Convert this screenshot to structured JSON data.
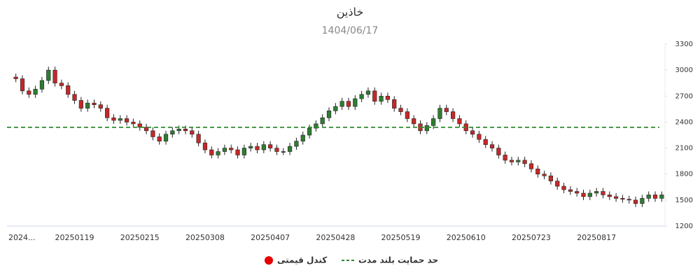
{
  "chart_data": {
    "type": "candlestick",
    "title": "خاذین",
    "subtitle": "1404/06/17",
    "categories": [
      null,
      "2024...",
      null,
      null,
      null,
      null,
      null,
      null,
      null,
      "20250119",
      null,
      null,
      null,
      null,
      null,
      null,
      null,
      null,
      null,
      "20250215",
      null,
      null,
      null,
      null,
      null,
      null,
      null,
      null,
      null,
      "20250308",
      null,
      null,
      null,
      null,
      null,
      null,
      null,
      null,
      null,
      "20250407",
      null,
      null,
      null,
      null,
      null,
      null,
      null,
      null,
      null,
      "20250428",
      null,
      null,
      null,
      null,
      null,
      null,
      null,
      null,
      null,
      "20250519",
      null,
      null,
      null,
      null,
      null,
      null,
      null,
      null,
      null,
      "20250610",
      null,
      null,
      null,
      null,
      null,
      null,
      null,
      null,
      null,
      "20250723",
      null,
      null,
      null,
      null,
      null,
      null,
      null,
      null,
      null,
      "20250817",
      null,
      null,
      null,
      null,
      null,
      null,
      null,
      null,
      null,
      null
    ],
    "series": [
      {
        "name": "کندل قیمتی",
        "color": "#e60000",
        "up_color": "#2e7d32",
        "down_color": "#c62828",
        "open": [
          2920,
          2900,
          2760,
          2720,
          2780,
          2880,
          3000,
          2850,
          2820,
          2720,
          2650,
          2560,
          2620,
          2600,
          2560,
          2450,
          2420,
          2440,
          2400,
          2380,
          2340,
          2300,
          2230,
          2180,
          2260,
          2300,
          2320,
          2300,
          2260,
          2160,
          2080,
          2020,
          2060,
          2100,
          2080,
          2020,
          2100,
          2120,
          2080,
          2140,
          2100,
          2060,
          2060,
          2120,
          2180,
          2250,
          2330,
          2380,
          2450,
          2530,
          2580,
          2640,
          2580,
          2670,
          2720,
          2760,
          2640,
          2700,
          2660,
          2560,
          2520,
          2440,
          2380,
          2300,
          2360,
          2440,
          2560,
          2520,
          2440,
          2380,
          2300,
          2260,
          2200,
          2140,
          2100,
          2020,
          1960,
          1940,
          1960,
          1920,
          1860,
          1800,
          1780,
          1720,
          1660,
          1620,
          1600,
          1580,
          1540,
          1580,
          1600,
          1560,
          1540,
          1520,
          1510,
          1500,
          1460,
          1520,
          1560,
          1520
        ],
        "high": [
          2960,
          2940,
          2800,
          2820,
          2920,
          3040,
          3040,
          2890,
          2860,
          2760,
          2690,
          2660,
          2660,
          2640,
          2600,
          2490,
          2480,
          2480,
          2440,
          2420,
          2380,
          2340,
          2270,
          2300,
          2340,
          2360,
          2360,
          2340,
          2300,
          2200,
          2120,
          2100,
          2140,
          2140,
          2120,
          2140,
          2160,
          2160,
          2180,
          2180,
          2140,
          2100,
          2160,
          2220,
          2290,
          2370,
          2420,
          2490,
          2570,
          2620,
          2680,
          2680,
          2710,
          2760,
          2800,
          2800,
          2740,
          2740,
          2700,
          2600,
          2560,
          2480,
          2420,
          2400,
          2480,
          2600,
          2600,
          2560,
          2480,
          2420,
          2340,
          2300,
          2240,
          2180,
          2140,
          2060,
          2000,
          2000,
          2000,
          1960,
          1900,
          1840,
          1820,
          1760,
          1700,
          1660,
          1640,
          1620,
          1620,
          1640,
          1640,
          1600,
          1580,
          1560,
          1550,
          1540,
          1560,
          1600,
          1600,
          1600
        ],
        "low": [
          2860,
          2720,
          2680,
          2680,
          2740,
          2840,
          2810,
          2780,
          2680,
          2610,
          2520,
          2520,
          2560,
          2520,
          2410,
          2380,
          2380,
          2360,
          2340,
          2300,
          2260,
          2190,
          2140,
          2140,
          2220,
          2260,
          2260,
          2220,
          2120,
          2040,
          1980,
          1980,
          2020,
          2040,
          1980,
          1980,
          2060,
          2040,
          2040,
          2060,
          2020,
          2020,
          2020,
          2080,
          2140,
          2210,
          2290,
          2340,
          2410,
          2490,
          2540,
          2540,
          2540,
          2630,
          2680,
          2600,
          2600,
          2620,
          2520,
          2480,
          2400,
          2340,
          2260,
          2260,
          2320,
          2400,
          2480,
          2400,
          2340,
          2260,
          2220,
          2160,
          2100,
          2060,
          1980,
          1920,
          1900,
          1900,
          1880,
          1820,
          1760,
          1740,
          1680,
          1620,
          1580,
          1560,
          1540,
          1500,
          1500,
          1540,
          1520,
          1500,
          1480,
          1470,
          1460,
          1420,
          1420,
          1480,
          1480,
          1480
        ],
        "close": [
          2900,
          2760,
          2720,
          2780,
          2880,
          3000,
          2850,
          2820,
          2720,
          2650,
          2560,
          2620,
          2600,
          2560,
          2450,
          2420,
          2440,
          2400,
          2380,
          2340,
          2300,
          2230,
          2180,
          2260,
          2300,
          2320,
          2300,
          2260,
          2160,
          2080,
          2020,
          2060,
          2100,
          2080,
          2020,
          2100,
          2120,
          2080,
          2140,
          2100,
          2060,
          2060,
          2120,
          2180,
          2250,
          2330,
          2380,
          2450,
          2530,
          2580,
          2640,
          2580,
          2670,
          2720,
          2760,
          2640,
          2700,
          2660,
          2560,
          2520,
          2440,
          2380,
          2300,
          2360,
          2440,
          2560,
          2520,
          2440,
          2380,
          2300,
          2260,
          2200,
          2140,
          2100,
          2020,
          1960,
          1940,
          1960,
          1920,
          1860,
          1800,
          1780,
          1720,
          1660,
          1620,
          1600,
          1580,
          1540,
          1580,
          1600,
          1560,
          1540,
          1520,
          1510,
          1500,
          1460,
          1520,
          1560,
          1520,
          1560
        ]
      }
    ],
    "support": {
      "name": "حد حمایت بلند مدت",
      "value": 2340,
      "color": "#2e8b2e"
    },
    "ylim": [
      1200,
      3300
    ],
    "yticks": [
      1200,
      1500,
      1800,
      2100,
      2400,
      2700,
      3000,
      3300
    ]
  }
}
